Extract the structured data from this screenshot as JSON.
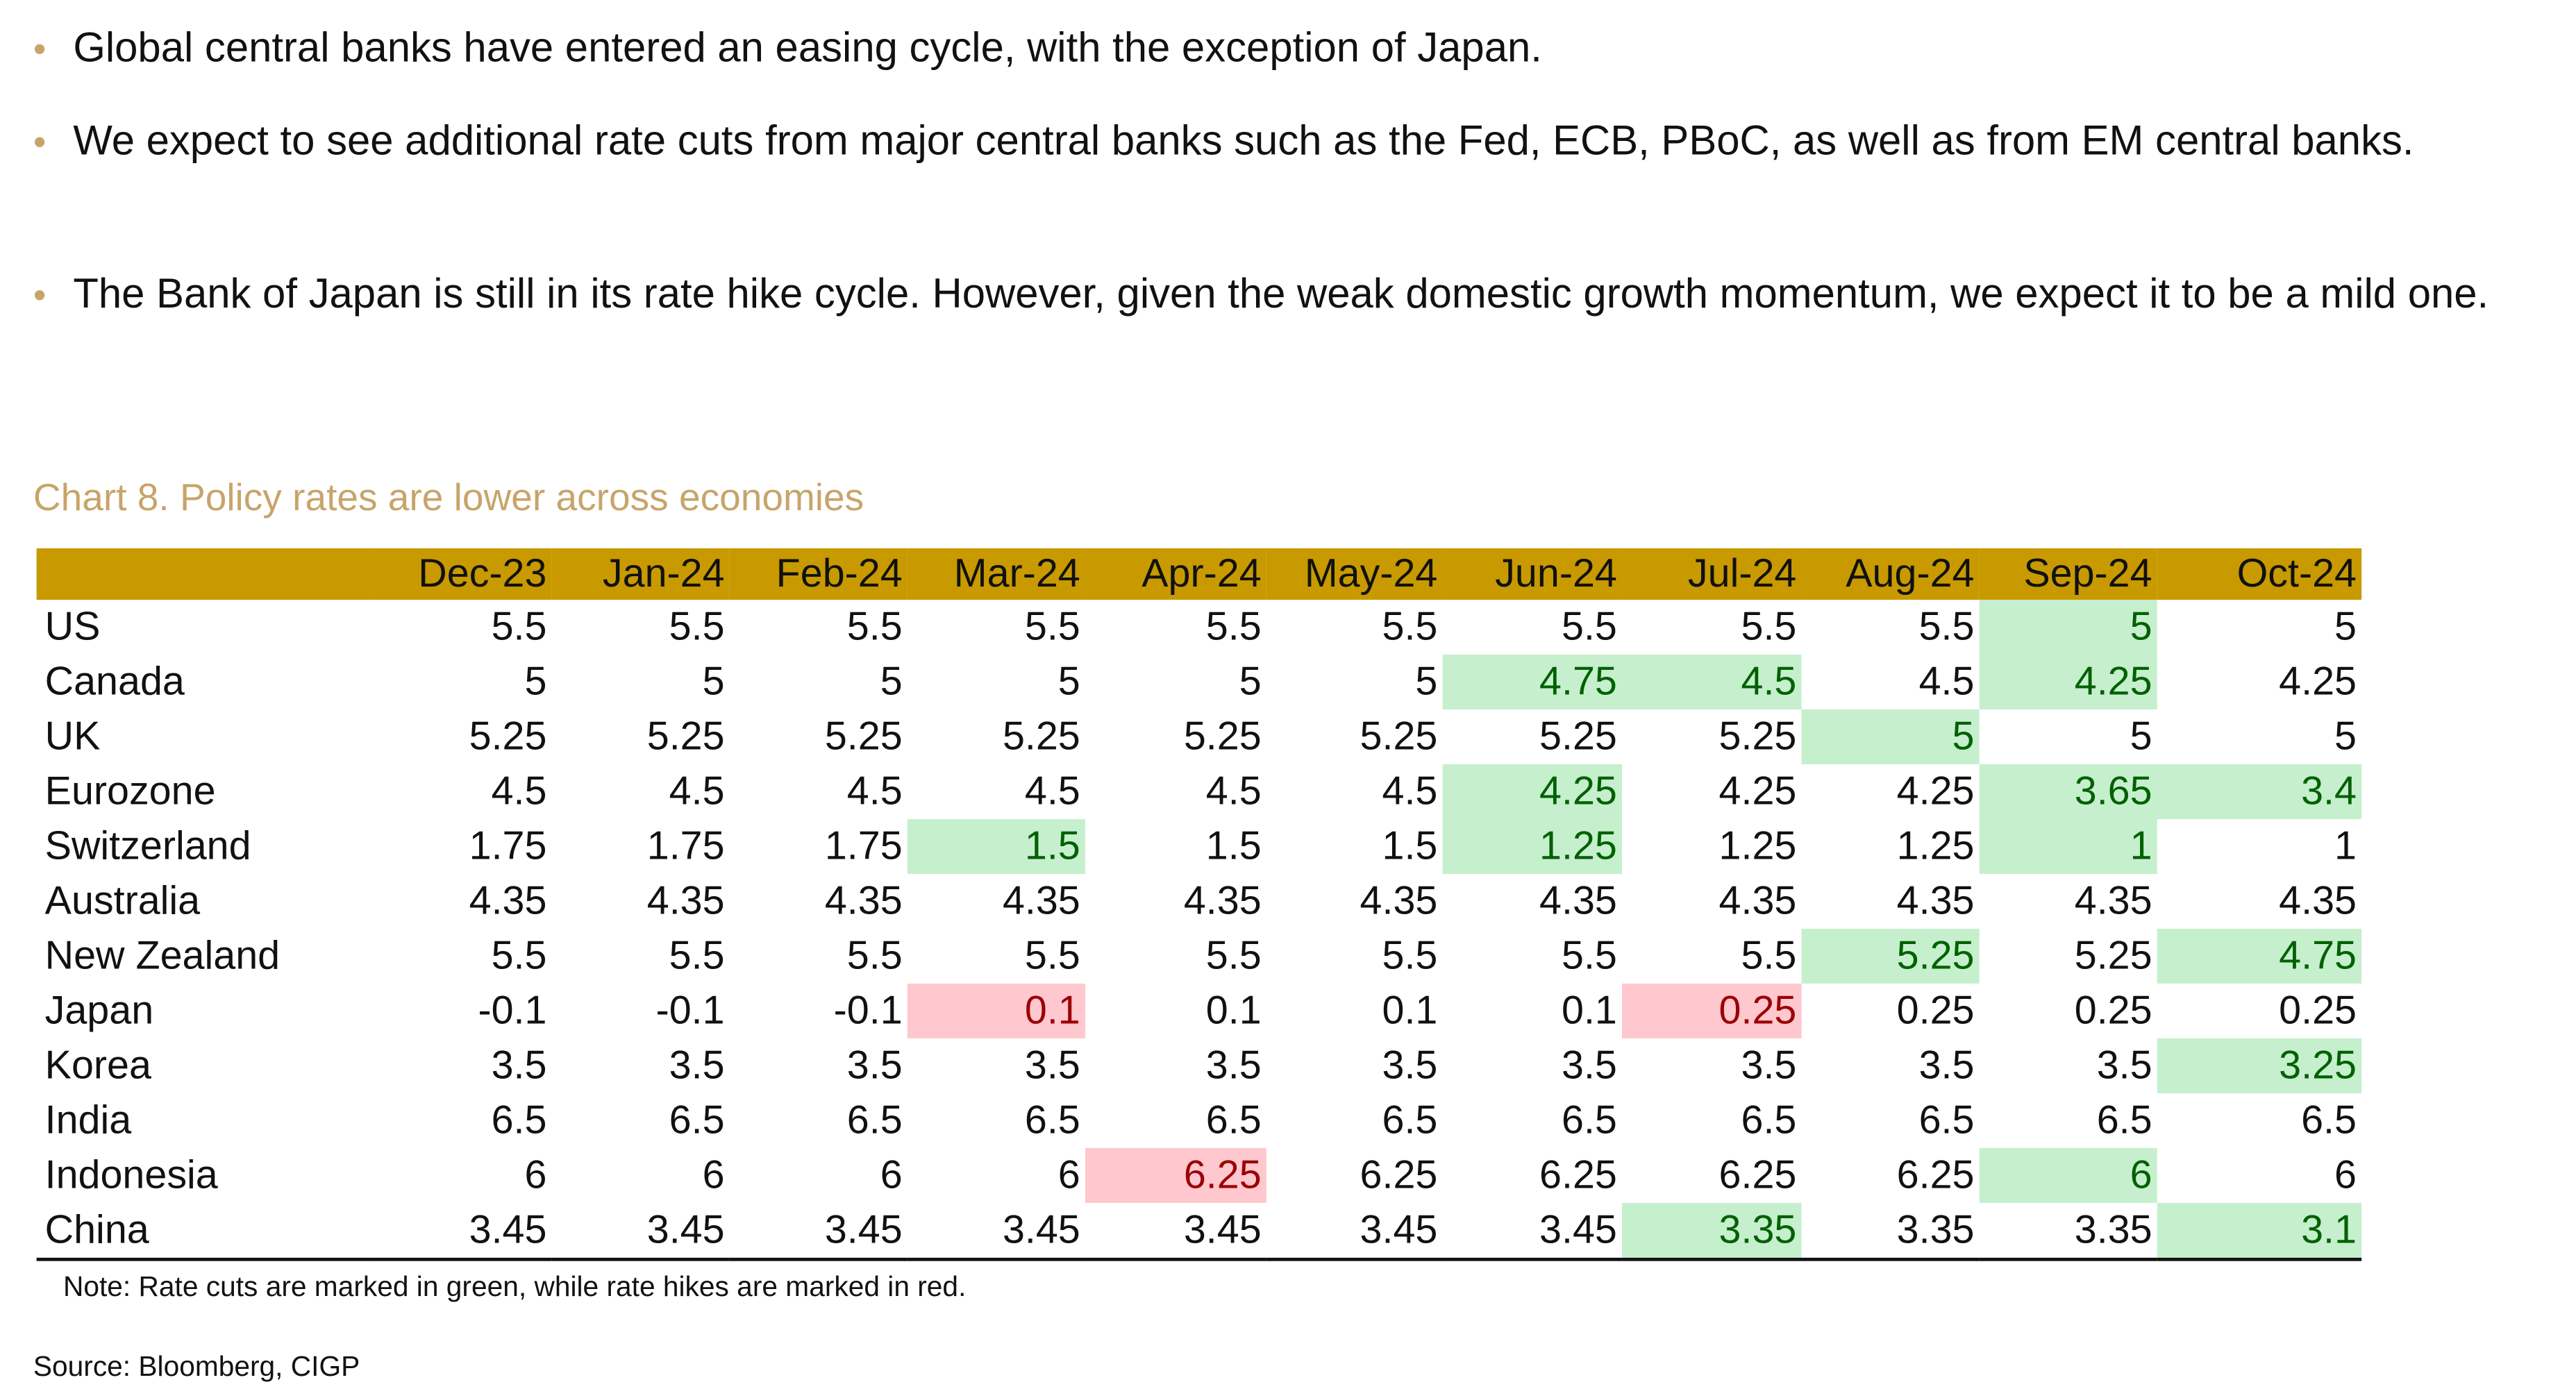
{
  "bullets": [
    "Global central banks have entered an easing cycle, with the exception of Japan.",
    "We expect to see additional rate cuts from major central banks such as the Fed, ECB, PBoC, as well as from EM central banks.",
    "The Bank of Japan is still in its rate hike cycle. However, given the weak domestic growth momentum, we expect it to be a mild one."
  ],
  "chart_title": "Chart 8. Policy rates are lower across economies",
  "colors": {
    "header": "#c89a00",
    "cut_fill": "#c6efce",
    "cut_text": "#006100",
    "hike_fill": "#ffc7ce",
    "hike_text": "#9c0006",
    "title": "#c8a46a"
  },
  "table": {
    "columns": [
      "Dec-23",
      "Jan-24",
      "Feb-24",
      "Mar-24",
      "Apr-24",
      "May-24",
      "Jun-24",
      "Jul-24",
      "Aug-24",
      "Sep-24",
      "Oct-24"
    ],
    "rows": [
      {
        "country": "US",
        "values": [
          "5.5",
          "5.5",
          "5.5",
          "5.5",
          "5.5",
          "5.5",
          "5.5",
          "5.5",
          "5.5",
          "5",
          "5"
        ],
        "marks": [
          null,
          null,
          null,
          null,
          null,
          null,
          null,
          null,
          null,
          "cut",
          null
        ]
      },
      {
        "country": "Canada",
        "values": [
          "5",
          "5",
          "5",
          "5",
          "5",
          "5",
          "4.75",
          "4.5",
          "4.5",
          "4.25",
          "4.25"
        ],
        "marks": [
          null,
          null,
          null,
          null,
          null,
          null,
          "cut",
          "cut",
          null,
          "cut",
          null
        ]
      },
      {
        "country": "UK",
        "values": [
          "5.25",
          "5.25",
          "5.25",
          "5.25",
          "5.25",
          "5.25",
          "5.25",
          "5.25",
          "5",
          "5",
          "5"
        ],
        "marks": [
          null,
          null,
          null,
          null,
          null,
          null,
          null,
          null,
          "cut",
          null,
          null
        ]
      },
      {
        "country": "Eurozone",
        "values": [
          "4.5",
          "4.5",
          "4.5",
          "4.5",
          "4.5",
          "4.5",
          "4.25",
          "4.25",
          "4.25",
          "3.65",
          "3.4"
        ],
        "marks": [
          null,
          null,
          null,
          null,
          null,
          null,
          "cut",
          null,
          null,
          "cut",
          "cut"
        ]
      },
      {
        "country": "Switzerland",
        "values": [
          "1.75",
          "1.75",
          "1.75",
          "1.5",
          "1.5",
          "1.5",
          "1.25",
          "1.25",
          "1.25",
          "1",
          "1"
        ],
        "marks": [
          null,
          null,
          null,
          "cut",
          null,
          null,
          "cut",
          null,
          null,
          "cut",
          null
        ]
      },
      {
        "country": "Australia",
        "values": [
          "4.35",
          "4.35",
          "4.35",
          "4.35",
          "4.35",
          "4.35",
          "4.35",
          "4.35",
          "4.35",
          "4.35",
          "4.35"
        ],
        "marks": [
          null,
          null,
          null,
          null,
          null,
          null,
          null,
          null,
          null,
          null,
          null
        ]
      },
      {
        "country": "New Zealand",
        "values": [
          "5.5",
          "5.5",
          "5.5",
          "5.5",
          "5.5",
          "5.5",
          "5.5",
          "5.5",
          "5.25",
          "5.25",
          "4.75"
        ],
        "marks": [
          null,
          null,
          null,
          null,
          null,
          null,
          null,
          null,
          "cut",
          null,
          "cut"
        ]
      },
      {
        "country": "Japan",
        "values": [
          "-0.1",
          "-0.1",
          "-0.1",
          "0.1",
          "0.1",
          "0.1",
          "0.1",
          "0.25",
          "0.25",
          "0.25",
          "0.25"
        ],
        "marks": [
          null,
          null,
          null,
          "hike",
          null,
          null,
          null,
          "hike",
          null,
          null,
          null
        ]
      },
      {
        "country": "Korea",
        "values": [
          "3.5",
          "3.5",
          "3.5",
          "3.5",
          "3.5",
          "3.5",
          "3.5",
          "3.5",
          "3.5",
          "3.5",
          "3.25"
        ],
        "marks": [
          null,
          null,
          null,
          null,
          null,
          null,
          null,
          null,
          null,
          null,
          "cut"
        ]
      },
      {
        "country": "India",
        "values": [
          "6.5",
          "6.5",
          "6.5",
          "6.5",
          "6.5",
          "6.5",
          "6.5",
          "6.5",
          "6.5",
          "6.5",
          "6.5"
        ],
        "marks": [
          null,
          null,
          null,
          null,
          null,
          null,
          null,
          null,
          null,
          null,
          null
        ]
      },
      {
        "country": "Indonesia",
        "values": [
          "6",
          "6",
          "6",
          "6",
          "6.25",
          "6.25",
          "6.25",
          "6.25",
          "6.25",
          "6",
          "6"
        ],
        "marks": [
          null,
          null,
          null,
          null,
          "hike",
          null,
          null,
          null,
          null,
          "cut",
          null
        ]
      },
      {
        "country": "China",
        "values": [
          "3.45",
          "3.45",
          "3.45",
          "3.45",
          "3.45",
          "3.45",
          "3.45",
          "3.35",
          "3.35",
          "3.35",
          "3.1"
        ],
        "marks": [
          null,
          null,
          null,
          null,
          null,
          null,
          null,
          "cut",
          null,
          null,
          "cut"
        ]
      }
    ]
  },
  "note": "Note: Rate cuts are marked in green, while rate hikes are marked in red.",
  "source": "Source: Bloomberg, CIGP"
}
